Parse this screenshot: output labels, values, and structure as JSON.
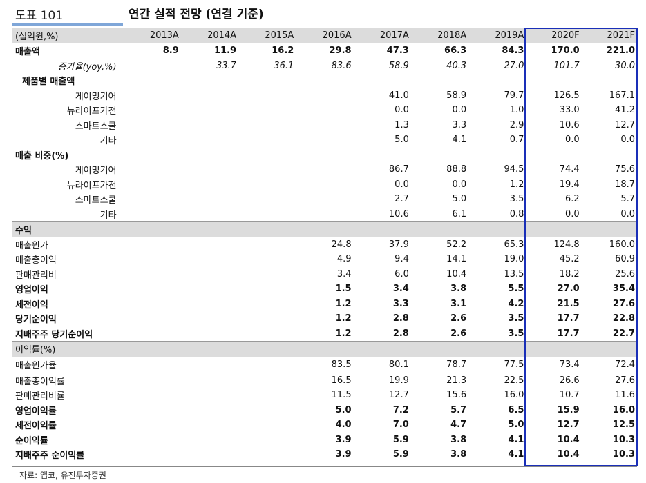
{
  "header": {
    "tag": "도표 101",
    "title": "연간 실적 전망 (연결 기준)"
  },
  "table": {
    "columns": [
      "(십억원,%)",
      "2013A",
      "2014A",
      "2015A",
      "2016A",
      "2017A",
      "2018A",
      "2019A",
      "2020F",
      "2021F"
    ],
    "rows": [
      {
        "label": "매출액",
        "style": "bold",
        "values": [
          "8.9",
          "11.9",
          "16.2",
          "29.8",
          "47.3",
          "66.3",
          "84.3",
          "170.0",
          "221.0"
        ]
      },
      {
        "label": "증가율(yoy,%)",
        "style": "italic",
        "values": [
          "",
          "33.7",
          "36.1",
          "83.6",
          "58.9",
          "40.3",
          "27.0",
          "101.7",
          "30.0"
        ]
      },
      {
        "label": "제품별 매출액",
        "style": "section",
        "values": [
          "",
          "",
          "",
          "",
          "",
          "",
          "",
          "",
          ""
        ]
      },
      {
        "label": "게이밍기어",
        "style": "indent",
        "values": [
          "",
          "",
          "",
          "",
          "41.0",
          "58.9",
          "79.7",
          "126.5",
          "167.1"
        ]
      },
      {
        "label": "뉴라이프가전",
        "style": "indent",
        "values": [
          "",
          "",
          "",
          "",
          "0.0",
          "0.0",
          "1.0",
          "33.0",
          "41.2"
        ]
      },
      {
        "label": "스마트스쿨",
        "style": "indent",
        "values": [
          "",
          "",
          "",
          "",
          "1.3",
          "3.3",
          "2.9",
          "10.6",
          "12.7"
        ]
      },
      {
        "label": "기타",
        "style": "indent",
        "values": [
          "",
          "",
          "",
          "",
          "5.0",
          "4.1",
          "0.7",
          "0.0",
          "0.0"
        ]
      },
      {
        "label": "매출 비중(%)",
        "style": "bold",
        "values": [
          "",
          "",
          "",
          "",
          "",
          "",
          "",
          "",
          ""
        ]
      },
      {
        "label": "게이밍기어",
        "style": "indent",
        "values": [
          "",
          "",
          "",
          "",
          "86.7",
          "88.8",
          "94.5",
          "74.4",
          "75.6"
        ]
      },
      {
        "label": "뉴라이프가전",
        "style": "indent",
        "values": [
          "",
          "",
          "",
          "",
          "0.0",
          "0.0",
          "1.2",
          "19.4",
          "18.7"
        ]
      },
      {
        "label": "스마트스쿨",
        "style": "indent",
        "values": [
          "",
          "",
          "",
          "",
          "2.7",
          "5.0",
          "3.5",
          "6.2",
          "5.7"
        ]
      },
      {
        "label": "기타",
        "style": "indent",
        "values": [
          "",
          "",
          "",
          "",
          "10.6",
          "6.1",
          "0.8",
          "0.0",
          "0.0"
        ]
      },
      {
        "label": "수익",
        "style": "gray-bold",
        "values": [
          "",
          "",
          "",
          "",
          "",
          "",
          "",
          "",
          ""
        ]
      },
      {
        "label": "매출원가",
        "style": "normal",
        "values": [
          "",
          "",
          "",
          "24.8",
          "37.9",
          "52.2",
          "65.3",
          "124.8",
          "160.0"
        ]
      },
      {
        "label": "매출총이익",
        "style": "normal",
        "values": [
          "",
          "",
          "",
          "4.9",
          "9.4",
          "14.1",
          "19.0",
          "45.2",
          "60.9"
        ]
      },
      {
        "label": "판매관리비",
        "style": "normal",
        "values": [
          "",
          "",
          "",
          "3.4",
          "6.0",
          "10.4",
          "13.5",
          "18.2",
          "25.6"
        ]
      },
      {
        "label": "영업이익",
        "style": "bold",
        "values": [
          "",
          "",
          "",
          "1.5",
          "3.4",
          "3.8",
          "5.5",
          "27.0",
          "35.4"
        ]
      },
      {
        "label": "세전이익",
        "style": "bold",
        "values": [
          "",
          "",
          "",
          "1.2",
          "3.3",
          "3.1",
          "4.2",
          "21.5",
          "27.6"
        ]
      },
      {
        "label": "당기순이익",
        "style": "bold",
        "values": [
          "",
          "",
          "",
          "1.2",
          "2.8",
          "2.6",
          "3.5",
          "17.7",
          "22.8"
        ]
      },
      {
        "label": "지배주주 당기순이익",
        "style": "bold",
        "values": [
          "",
          "",
          "",
          "1.2",
          "2.8",
          "2.6",
          "3.5",
          "17.7",
          "22.7"
        ]
      },
      {
        "label": "이익률(%)",
        "style": "gray",
        "values": [
          "",
          "",
          "",
          "",
          "",
          "",
          "",
          "",
          ""
        ]
      },
      {
        "label": "매출원가율",
        "style": "tall",
        "values": [
          "",
          "",
          "",
          "83.5",
          "80.1",
          "78.7",
          "77.5",
          "73.4",
          "72.4"
        ]
      },
      {
        "label": "매출총이익률",
        "style": "normal",
        "values": [
          "",
          "",
          "",
          "16.5",
          "19.9",
          "21.3",
          "22.5",
          "26.6",
          "27.6"
        ]
      },
      {
        "label": "판매관리비률",
        "style": "normal",
        "values": [
          "",
          "",
          "",
          "11.5",
          "12.7",
          "15.6",
          "16.0",
          "10.7",
          "11.6"
        ]
      },
      {
        "label": "영업이익률",
        "style": "bold",
        "values": [
          "",
          "",
          "",
          "5.0",
          "7.2",
          "5.7",
          "6.5",
          "15.9",
          "16.0"
        ]
      },
      {
        "label": "세전이익률",
        "style": "bold",
        "values": [
          "",
          "",
          "",
          "4.0",
          "7.0",
          "4.7",
          "5.0",
          "12.7",
          "12.5"
        ]
      },
      {
        "label": "순이익률",
        "style": "bold",
        "values": [
          "",
          "",
          "",
          "3.9",
          "5.9",
          "3.8",
          "4.1",
          "10.4",
          "10.3"
        ]
      },
      {
        "label": "지배주주 순이익률",
        "style": "bold",
        "values": [
          "",
          "",
          "",
          "3.9",
          "5.9",
          "3.8",
          "4.1",
          "10.4",
          "10.3"
        ]
      }
    ]
  },
  "footer": {
    "source": "자료: 앱코, 유진투자증권"
  },
  "colors": {
    "highlight_border": "#1a2fb8",
    "tag_underline": "#7fa6d8",
    "header_bg": "#dcdcdc"
  }
}
